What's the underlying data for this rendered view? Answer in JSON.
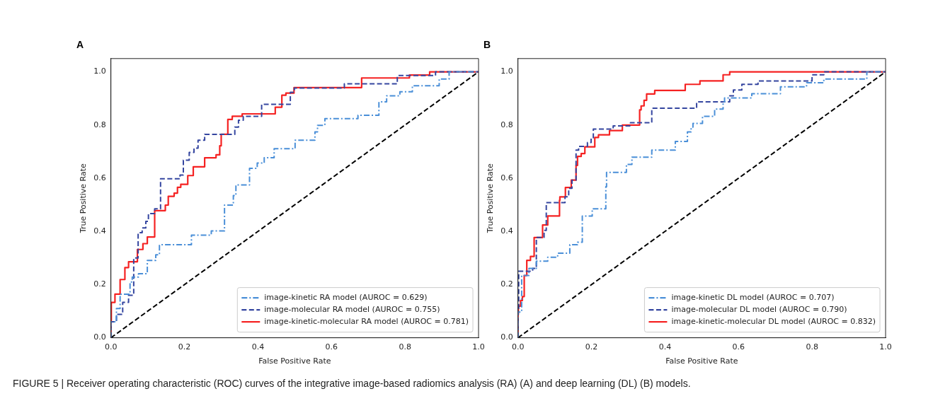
{
  "chart_data": [
    {
      "type": "step",
      "title": "A",
      "xlabel": "False Positive Rate",
      "ylabel": "True Positive Rate",
      "xlim": [
        0,
        1
      ],
      "ylim": [
        0,
        1.05
      ],
      "xticks": [
        {
          "value": 0,
          "label": "0.0"
        },
        {
          "value": 0.2,
          "label": "0.2"
        },
        {
          "value": 0.4,
          "label": "0.4"
        },
        {
          "value": 0.6,
          "label": "0.6"
        },
        {
          "value": 0.8,
          "label": "0.8"
        },
        {
          "value": 1,
          "label": "1.0"
        }
      ],
      "yticks": [
        {
          "value": 0,
          "label": "0.0"
        },
        {
          "value": 0.2,
          "label": "0.2"
        },
        {
          "value": 0.4,
          "label": "0.4"
        },
        {
          "value": 0.6,
          "label": "0.6"
        },
        {
          "value": 0.8,
          "label": "0.8"
        },
        {
          "value": 1,
          "label": "1.0"
        }
      ],
      "grid": false,
      "legend": "bottom right",
      "marker": "none",
      "series": [
        {
          "name": "image-kinetic RA model (AUROC = 0.629)",
          "type": "step",
          "line_style": "dashdot",
          "color": "#4a8fd8",
          "x": [
            0,
            0.015,
            0.025,
            0.052,
            0.058,
            0.075,
            0.099,
            0.122,
            0.132,
            0.219,
            0.273,
            0.309,
            0.333,
            0.34,
            0.377,
            0.398,
            0.417,
            0.444,
            0.501,
            0.555,
            0.562,
            0.582,
            0.672,
            0.729,
            0.75,
            0.786,
            0.82,
            0.893,
            0.92,
            1.0
          ],
          "values": [
            0,
            0.06,
            0.11,
            0.164,
            0.21,
            0.228,
            0.241,
            0.291,
            0.312,
            0.35,
            0.386,
            0.402,
            0.499,
            0.535,
            0.575,
            0.637,
            0.657,
            0.677,
            0.711,
            0.743,
            0.774,
            0.799,
            0.824,
            0.837,
            0.887,
            0.91,
            0.925,
            0.948,
            0.973,
            1.0
          ]
        },
        {
          "name": "image-molecular RA model (AUROC = 0.755)",
          "type": "step",
          "line_style": "dashed",
          "color": "#3546a0",
          "x": [
            0,
            0.015,
            0.032,
            0.048,
            0.062,
            0.074,
            0.085,
            0.095,
            0.102,
            0.119,
            0.135,
            0.188,
            0.197,
            0.213,
            0.226,
            0.237,
            0.255,
            0.337,
            0.347,
            0.36,
            0.41,
            0.488,
            0.499,
            0.635,
            0.779,
            0.883,
            1.0
          ],
          "values": [
            0,
            0.06,
            0.088,
            0.133,
            0.16,
            0.3,
            0.395,
            0.413,
            0.438,
            0.467,
            0.485,
            0.598,
            0.612,
            0.668,
            0.697,
            0.713,
            0.743,
            0.765,
            0.792,
            0.818,
            0.833,
            0.878,
            0.923,
            0.939,
            0.955,
            0.986,
            1.0
          ]
        },
        {
          "name": "image-kinetic-molecular RA model (AUROC = 0.781)",
          "type": "step",
          "line_style": "solid",
          "color": "#f52222",
          "x": [
            0,
            0.001,
            0.011,
            0.025,
            0.038,
            0.048,
            0.072,
            0.087,
            0.099,
            0.119,
            0.148,
            0.156,
            0.172,
            0.181,
            0.19,
            0.209,
            0.224,
            0.255,
            0.286,
            0.296,
            0.3,
            0.318,
            0.33,
            0.357,
            0.447,
            0.465,
            0.476,
            0.498,
            0.682,
            0.812,
            0.867,
            0.893,
            1.0
          ],
          "values": [
            0,
            0.065,
            0.133,
            0.164,
            0.219,
            0.264,
            0.286,
            0.332,
            0.354,
            0.379,
            0.478,
            0.499,
            0.532,
            0.544,
            0.566,
            0.577,
            0.61,
            0.643,
            0.677,
            0.688,
            0.722,
            0.765,
            0.821,
            0.833,
            0.842,
            0.867,
            0.912,
            0.92,
            0.941,
            0.977,
            0.988,
            1.0,
            1.0
          ]
        },
        {
          "type": "line",
          "line_style": "dashed",
          "color": "#000000",
          "x": [
            0,
            1
          ],
          "values": [
            0,
            1
          ]
        }
      ],
      "annotations": [
        "FIGURE 5 | Receiver operating characteristic (ROC) curves of the integrative image-based radiomics analysis (RA) (A) and deep learning (DL) (B) models."
      ]
    },
    {
      "type": "step",
      "title": "B",
      "xlabel": "False Positive Rate",
      "ylabel": "True Positive Rate",
      "xlim": [
        0,
        1
      ],
      "ylim": [
        0,
        1.05
      ],
      "xticks": [
        {
          "value": 0,
          "label": "0.0"
        },
        {
          "value": 0.2,
          "label": "0.2"
        },
        {
          "value": 0.4,
          "label": "0.4"
        },
        {
          "value": 0.6,
          "label": "0.6"
        },
        {
          "value": 0.8,
          "label": "0.8"
        },
        {
          "value": 1,
          "label": "1.0"
        }
      ],
      "yticks": [
        {
          "value": 0,
          "label": "0.0"
        },
        {
          "value": 0.2,
          "label": "0.2"
        },
        {
          "value": 0.4,
          "label": "0.4"
        },
        {
          "value": 0.6,
          "label": "0.6"
        },
        {
          "value": 0.8,
          "label": "0.8"
        },
        {
          "value": 1,
          "label": "1.0"
        }
      ],
      "grid": false,
      "legend": "bottom right",
      "marker": "none",
      "series": [
        {
          "name": "image-kinetic DL model (AUROC = 0.707)",
          "type": "step",
          "line_style": "dashdot",
          "color": "#4a8fd8",
          "x": [
            0,
            0.01,
            0.03,
            0.05,
            0.081,
            0.108,
            0.141,
            0.162,
            0.175,
            0.202,
            0.239,
            0.241,
            0.295,
            0.31,
            0.364,
            0.428,
            0.461,
            0.471,
            0.476,
            0.502,
            0.535,
            0.558,
            0.562,
            0.636,
            0.714,
            0.785,
            0.832,
            0.949,
            1.0
          ],
          "values": [
            0,
            0.097,
            0.234,
            0.261,
            0.288,
            0.303,
            0.318,
            0.35,
            0.359,
            0.458,
            0.485,
            0.568,
            0.622,
            0.652,
            0.679,
            0.706,
            0.738,
            0.774,
            0.792,
            0.806,
            0.833,
            0.86,
            0.887,
            0.902,
            0.918,
            0.944,
            0.959,
            0.973,
            1.0
          ]
        },
        {
          "name": "image-molecular DL model (AUROC = 0.790)",
          "type": "step",
          "line_style": "dashed",
          "color": "#3546a0",
          "x": [
            0,
            0.002,
            0.04,
            0.05,
            0.071,
            0.077,
            0.128,
            0.138,
            0.147,
            0.158,
            0.165,
            0.189,
            0.199,
            0.205,
            0.259,
            0.306,
            0.364,
            0.486,
            0.576,
            0.586,
            0.609,
            0.653,
            0.8,
            0.832,
            0.943,
            1.0
          ],
          "values": [
            0,
            0.1,
            0.25,
            0.261,
            0.377,
            0.404,
            0.508,
            0.53,
            0.562,
            0.593,
            0.706,
            0.72,
            0.734,
            0.752,
            0.785,
            0.797,
            0.809,
            0.863,
            0.887,
            0.91,
            0.932,
            0.953,
            0.966,
            0.989,
            1.0,
            1.0
          ]
        },
        {
          "name": "image-kinetic-molecular DL model (AUROC = 0.832)",
          "type": "step",
          "line_style": "solid",
          "color": "#f52222",
          "x": [
            0,
            0.001,
            0.007,
            0.012,
            0.017,
            0.024,
            0.034,
            0.044,
            0.067,
            0.081,
            0.113,
            0.114,
            0.129,
            0.145,
            0.158,
            0.162,
            0.172,
            0.182,
            0.209,
            0.219,
            0.249,
            0.284,
            0.331,
            0.335,
            0.343,
            0.35,
            0.372,
            0.455,
            0.495,
            0.558,
            0.576,
            0.835,
            1.0
          ],
          "values": [
            0,
            0.088,
            0.119,
            0.14,
            0.155,
            0.234,
            0.291,
            0.306,
            0.377,
            0.424,
            0.458,
            0.517,
            0.53,
            0.565,
            0.593,
            0.648,
            0.682,
            0.693,
            0.718,
            0.753,
            0.763,
            0.779,
            0.8,
            0.857,
            0.872,
            0.893,
            0.917,
            0.93,
            0.953,
            0.966,
            0.989,
            1.0,
            1.0
          ]
        },
        {
          "type": "line",
          "line_style": "dashed",
          "color": "#000000",
          "x": [
            0,
            1
          ],
          "values": [
            0,
            1
          ]
        }
      ]
    }
  ]
}
